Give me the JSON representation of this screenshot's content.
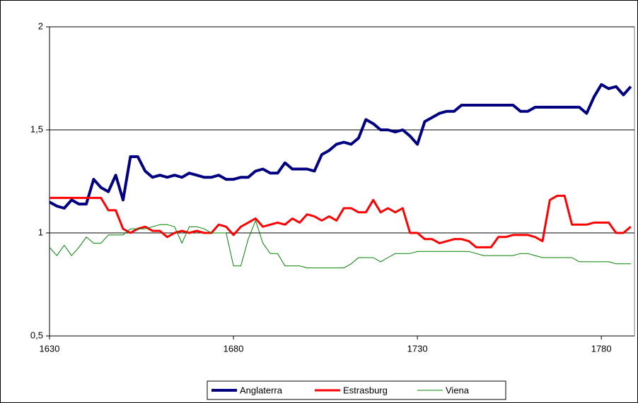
{
  "chart_data": {
    "type": "line",
    "x": [
      1630,
      1632,
      1634,
      1636,
      1638,
      1640,
      1642,
      1644,
      1646,
      1648,
      1650,
      1652,
      1654,
      1656,
      1658,
      1660,
      1662,
      1664,
      1666,
      1668,
      1670,
      1672,
      1674,
      1676,
      1678,
      1680,
      1682,
      1684,
      1686,
      1688,
      1690,
      1692,
      1694,
      1696,
      1698,
      1700,
      1702,
      1704,
      1706,
      1708,
      1710,
      1712,
      1714,
      1716,
      1718,
      1720,
      1722,
      1724,
      1726,
      1728,
      1730,
      1732,
      1734,
      1736,
      1738,
      1740,
      1742,
      1744,
      1746,
      1748,
      1750,
      1752,
      1754,
      1756,
      1758,
      1760,
      1762,
      1764,
      1766,
      1768,
      1770,
      1772,
      1774,
      1776,
      1778,
      1780,
      1782,
      1784,
      1786,
      1788
    ],
    "series": [
      {
        "name": "Anglaterra",
        "color": "#000080",
        "values": [
          1.15,
          1.13,
          1.12,
          1.16,
          1.14,
          1.14,
          1.26,
          1.22,
          1.2,
          1.28,
          1.16,
          1.37,
          1.37,
          1.3,
          1.27,
          1.28,
          1.27,
          1.28,
          1.27,
          1.29,
          1.28,
          1.27,
          1.27,
          1.28,
          1.26,
          1.26,
          1.27,
          1.27,
          1.3,
          1.31,
          1.29,
          1.29,
          1.34,
          1.31,
          1.31,
          1.31,
          1.3,
          1.38,
          1.4,
          1.43,
          1.44,
          1.43,
          1.46,
          1.55,
          1.53,
          1.5,
          1.5,
          1.49,
          1.5,
          1.47,
          1.43,
          1.54,
          1.56,
          1.58,
          1.59,
          1.59,
          1.62,
          1.62,
          1.62,
          1.62,
          1.62,
          1.62,
          1.62,
          1.62,
          1.59,
          1.59,
          1.61,
          1.61,
          1.61,
          1.61,
          1.61,
          1.61,
          1.61,
          1.58,
          1.66,
          1.72,
          1.7,
          1.71,
          1.67,
          1.71
        ]
      },
      {
        "name": "Estrasburg",
        "color": "#ff0000",
        "values": [
          1.17,
          1.17,
          1.17,
          1.17,
          1.17,
          1.17,
          1.17,
          1.17,
          1.11,
          1.11,
          1.02,
          1.0,
          1.02,
          1.03,
          1.01,
          1.01,
          0.98,
          1.0,
          1.01,
          1.0,
          1.01,
          1.0,
          1.0,
          1.04,
          1.03,
          0.99,
          1.03,
          1.05,
          1.07,
          1.03,
          1.04,
          1.05,
          1.04,
          1.07,
          1.05,
          1.09,
          1.08,
          1.06,
          1.08,
          1.06,
          1.12,
          1.12,
          1.1,
          1.1,
          1.16,
          1.1,
          1.12,
          1.1,
          1.12,
          1.0,
          1.0,
          0.97,
          0.97,
          0.95,
          0.96,
          0.97,
          0.97,
          0.96,
          0.93,
          0.93,
          0.93,
          0.98,
          0.98,
          0.99,
          0.99,
          0.99,
          0.98,
          0.96,
          1.16,
          1.18,
          1.18,
          1.04,
          1.04,
          1.04,
          1.05,
          1.05,
          1.05,
          1.0,
          1.0,
          1.03
        ]
      },
      {
        "name": "Viena",
        "color": "#008000",
        "values": [
          0.93,
          0.89,
          0.94,
          0.89,
          0.93,
          0.98,
          0.95,
          0.95,
          0.99,
          0.99,
          0.99,
          1.02,
          1.02,
          1.02,
          1.03,
          1.04,
          1.04,
          1.03,
          0.95,
          1.03,
          1.03,
          1.02,
          1.0,
          1.0,
          1.0,
          0.84,
          0.84,
          0.97,
          1.06,
          0.95,
          0.9,
          0.9,
          0.84,
          0.84,
          0.84,
          0.83,
          0.83,
          0.83,
          0.83,
          0.83,
          0.83,
          0.85,
          0.88,
          0.88,
          0.88,
          0.86,
          0.88,
          0.9,
          0.9,
          0.9,
          0.91,
          0.91,
          0.91,
          0.91,
          0.91,
          0.91,
          0.91,
          0.91,
          0.9,
          0.89,
          0.89,
          0.89,
          0.89,
          0.89,
          0.9,
          0.9,
          0.89,
          0.88,
          0.88,
          0.88,
          0.88,
          0.88,
          0.86,
          0.86,
          0.86,
          0.86,
          0.86,
          0.85,
          0.85,
          0.85
        ]
      }
    ],
    "xlim": [
      1630,
      1789
    ],
    "xticks": [
      1630,
      1680,
      1730,
      1780
    ],
    "ylim": [
      0.5,
      2
    ],
    "yticks": [
      {
        "value": 0.5,
        "label": "0,5"
      },
      1,
      {
        "value": 1.5,
        "label": "1,5"
      },
      2
    ],
    "grid": true,
    "legend": "bottom"
  }
}
